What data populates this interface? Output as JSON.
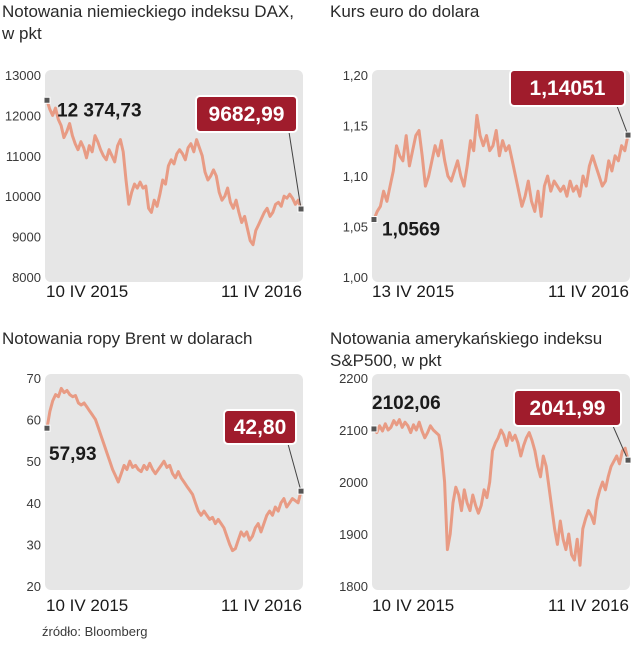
{
  "source": "źródło: Bloomberg",
  "colors": {
    "panel": "#e6e6e6",
    "line": "#e89b84",
    "badge": "#a01c2c",
    "marker": "#555555"
  },
  "chart_data": [
    {
      "type": "line",
      "title": [
        "Notowania niemieckiego indeksu DAX,",
        "w pkt"
      ],
      "ylim": [
        8000,
        13000
      ],
      "yticks": [
        8000,
        9000,
        10000,
        11000,
        12000,
        13000
      ],
      "ytick_labels": [
        "8000",
        "9000",
        "10000",
        "11000",
        "12000",
        "13000"
      ],
      "date_start": "10 IV 2015",
      "date_end": "11 IV 2016",
      "start_label": "12 374,73",
      "end_label": "9682,99",
      "start_value": 12374.73,
      "end_value": 9682.99,
      "values": [
        12374.73,
        12150,
        12000,
        12180,
        11900,
        11750,
        11450,
        11600,
        11800,
        11500,
        11300,
        11150,
        11350,
        11200,
        10950,
        11250,
        11100,
        11500,
        11350,
        11150,
        11000,
        10900,
        11150,
        11000,
        10850,
        11250,
        11400,
        11100,
        10400,
        9800,
        10100,
        10300,
        10200,
        10350,
        10200,
        10250,
        9700,
        9600,
        9900,
        9750,
        10050,
        10400,
        10300,
        10750,
        10900,
        10800,
        11050,
        11150,
        11050,
        10900,
        11200,
        11300,
        11100,
        11400,
        11200,
        11000,
        10600,
        10400,
        10500,
        10650,
        10500,
        10100,
        9900,
        10000,
        10200,
        9850,
        9700,
        9900,
        9600,
        9350,
        9500,
        9200,
        8900,
        8800,
        9150,
        9300,
        9450,
        9600,
        9700,
        9500,
        9600,
        9800,
        9850,
        9750,
        10000,
        9950,
        10050,
        9950,
        9800,
        9900,
        9682.99
      ]
    },
    {
      "type": "line",
      "title": [
        "Kurs euro do dolara"
      ],
      "ylim": [
        1.0,
        1.2
      ],
      "yticks": [
        1.0,
        1.05,
        1.1,
        1.15,
        1.2
      ],
      "ytick_labels": [
        "1,00",
        "1,05",
        "1,10",
        "1,15",
        "1,20"
      ],
      "date_start": "13 IV 2015",
      "date_end": "11 IV 2016",
      "start_label": "1,0569",
      "end_label": "1,14051",
      "start_value": 1.0569,
      "end_value": 1.14051,
      "values": [
        1.0569,
        1.065,
        1.07,
        1.085,
        1.075,
        1.09,
        1.105,
        1.13,
        1.12,
        1.115,
        1.14,
        1.11,
        1.125,
        1.14,
        1.145,
        1.12,
        1.09,
        1.1,
        1.115,
        1.13,
        1.12,
        1.135,
        1.115,
        1.1,
        1.095,
        1.105,
        1.115,
        1.1,
        1.09,
        1.11,
        1.135,
        1.125,
        1.16,
        1.14,
        1.13,
        1.14,
        1.125,
        1.13,
        1.145,
        1.12,
        1.135,
        1.125,
        1.13,
        1.115,
        1.1,
        1.085,
        1.07,
        1.08,
        1.095,
        1.075,
        1.065,
        1.085,
        1.06,
        1.09,
        1.1,
        1.085,
        1.095,
        1.09,
        1.085,
        1.09,
        1.08,
        1.095,
        1.085,
        1.09,
        1.08,
        1.1,
        1.09,
        1.11,
        1.12,
        1.11,
        1.1,
        1.09,
        1.095,
        1.115,
        1.105,
        1.12,
        1.115,
        1.13,
        1.125,
        1.14051
      ]
    },
    {
      "type": "line",
      "title": [
        "Notowania ropy Brent w dolarach"
      ],
      "ylim": [
        20,
        70
      ],
      "yticks": [
        20,
        30,
        40,
        50,
        60,
        70
      ],
      "ytick_labels": [
        "20",
        "30",
        "40",
        "50",
        "60",
        "70"
      ],
      "date_start": "10 IV 2015",
      "date_end": "11 IV 2016",
      "start_label": "57,93",
      "end_label": "42,80",
      "start_value": 57.93,
      "end_value": 42.8,
      "values": [
        57.93,
        62,
        64.5,
        66,
        65.5,
        67.5,
        66.5,
        67,
        66,
        65.5,
        65.8,
        64,
        63.5,
        64,
        63,
        62,
        61,
        60,
        58,
        56,
        54,
        52,
        50,
        48,
        46.5,
        45,
        47,
        49,
        48,
        50,
        48.5,
        49,
        48,
        47.5,
        49,
        48,
        49.5,
        48,
        47,
        48,
        49,
        50,
        48.5,
        49,
        47,
        46,
        47.5,
        46,
        45,
        44,
        43,
        42,
        40,
        38,
        37,
        38,
        37,
        36,
        36.5,
        35,
        36,
        35,
        34,
        32,
        30,
        28.5,
        29,
        31,
        33,
        32,
        33,
        31,
        32,
        34,
        35,
        33,
        35,
        37,
        38,
        37,
        39,
        38,
        40,
        41,
        39,
        40,
        41,
        40.5,
        40,
        42.8
      ]
    },
    {
      "type": "line",
      "title": [
        "Notowania amerykańskiego indeksu",
        "S&P500, w pkt"
      ],
      "ylim": [
        1800,
        2200
      ],
      "yticks": [
        1800,
        1900,
        2000,
        2100,
        2200
      ],
      "ytick_labels": [
        "1800",
        "1900",
        "2000",
        "2100",
        "2200"
      ],
      "date_start": "10 IV 2015",
      "date_end": "11 IV 2016",
      "start_label": "2102,06",
      "end_label": "2041,99",
      "start_value": 2102.06,
      "end_value": 2041.99,
      "values": [
        2102.06,
        2095,
        2108,
        2098,
        2112,
        2100,
        2105,
        2118,
        2110,
        2120,
        2105,
        2115,
        2108,
        2095,
        2110,
        2100,
        2115,
        2098,
        2085,
        2095,
        2108,
        2100,
        2095,
        2090,
        2060,
        2000,
        1870,
        1900,
        1960,
        1990,
        1975,
        1945,
        1985,
        1960,
        1945,
        1975,
        1955,
        1940,
        1955,
        1985,
        1970,
        2000,
        2060,
        2075,
        2085,
        2100,
        2090,
        2070,
        2095,
        2080,
        2090,
        2075,
        2050,
        2070,
        2085,
        2095,
        2080,
        2060,
        2030,
        2010,
        2050,
        2030,
        1990,
        1950,
        1910,
        1880,
        1925,
        1890,
        1870,
        1900,
        1860,
        1850,
        1890,
        1840,
        1910,
        1930,
        1945,
        1935,
        1920,
        1965,
        1985,
        2000,
        1985,
        2010,
        2030,
        2040,
        2050,
        2035,
        2060,
        2065,
        2041.99
      ]
    }
  ]
}
